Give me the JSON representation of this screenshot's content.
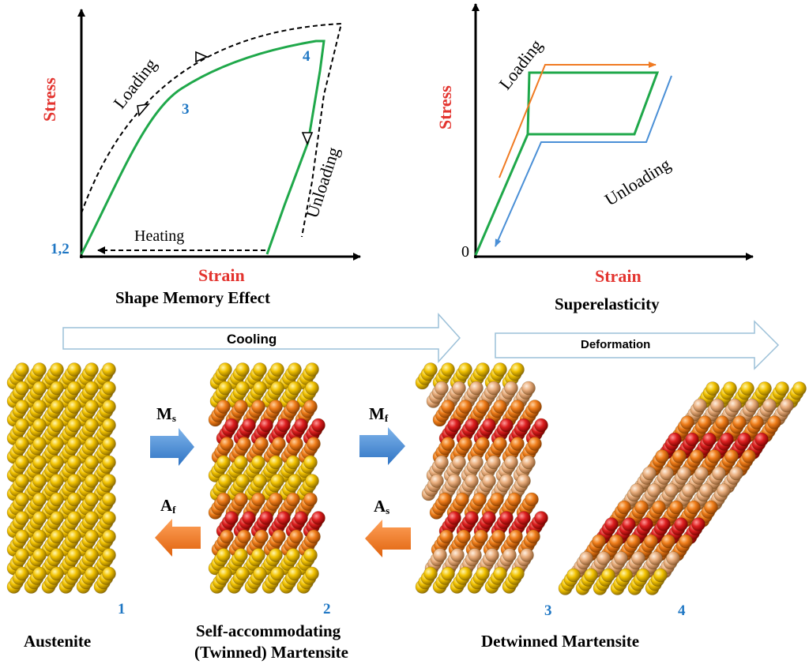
{
  "sme_chart": {
    "title": "Shape Memory Effect",
    "x_label": "Strain",
    "y_label": "Stress",
    "loading_label": "Loading",
    "unloading_label": "Unloading",
    "heating_label": "Heating",
    "points": [
      "1,2",
      "3",
      "4"
    ]
  },
  "se_chart": {
    "title": "Superelasticity",
    "x_label": "Strain",
    "y_label": "Stress",
    "origin_label": "0",
    "loading_label": "Loading",
    "unloading_label": "Unloading"
  },
  "process": {
    "cooling_label": "Cooling",
    "deformation_label": "Deformation",
    "ms_label": "M",
    "ms_sub": "s",
    "mf_label": "M",
    "mf_sub": "f",
    "af_label": "A",
    "af_sub": "f",
    "as_label": "A",
    "as_sub": "s"
  },
  "stages": [
    {
      "num": "1",
      "name": "Austenite"
    },
    {
      "num": "2",
      "name_line1": "Self-accommodating",
      "name_line2": "(Twinned) Martensite"
    },
    {
      "num": "3",
      "name": "Detwinned Martensite"
    },
    {
      "num": "4"
    }
  ],
  "colors": {
    "green_curve": "#1fa84a",
    "orange_arrow": "#f07a22",
    "blue_arrow": "#4a8fd6",
    "label_red": "#e3342f",
    "label_blue": "#1f77c4",
    "atom_yellow": "#f2c200",
    "atom_orange": "#ef7d1a",
    "atom_red": "#dd2020",
    "atom_peach": "#e9ad7c"
  },
  "icons": [
    "open-triangle-arrow-icon",
    "block-arrow-right-icon",
    "block-arrow-left-icon"
  ]
}
